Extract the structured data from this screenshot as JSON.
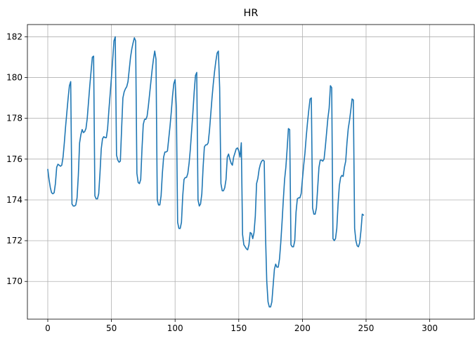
{
  "chart_data": {
    "type": "line",
    "title": "HR",
    "xlabel": "",
    "ylabel": "",
    "xlim": [
      -16,
      335
    ],
    "ylim": [
      168.15,
      182.6
    ],
    "xticks": [
      0,
      50,
      100,
      150,
      200,
      250,
      300
    ],
    "yticks": [
      170,
      172,
      174,
      176,
      178,
      180,
      182
    ],
    "grid": true,
    "series": [
      {
        "color": "#1f77b4",
        "points": [
          [
            0,
            175.5
          ],
          [
            1,
            175.0
          ],
          [
            2,
            174.6
          ],
          [
            3,
            174.35
          ],
          [
            4,
            174.3
          ],
          [
            5,
            174.35
          ],
          [
            6,
            174.8
          ],
          [
            7,
            175.6
          ],
          [
            8,
            175.75
          ],
          [
            9,
            175.7
          ],
          [
            10,
            175.65
          ],
          [
            11,
            175.7
          ],
          [
            12,
            176.1
          ],
          [
            13,
            176.8
          ],
          [
            14,
            177.6
          ],
          [
            15,
            178.3
          ],
          [
            16,
            179.0
          ],
          [
            17,
            179.6
          ],
          [
            18,
            179.8
          ],
          [
            19,
            173.8
          ],
          [
            20,
            173.7
          ],
          [
            21,
            173.7
          ],
          [
            22,
            173.75
          ],
          [
            23,
            174.1
          ],
          [
            24,
            175.2
          ],
          [
            25,
            176.8
          ],
          [
            26,
            177.2
          ],
          [
            27,
            177.45
          ],
          [
            28,
            177.3
          ],
          [
            29,
            177.35
          ],
          [
            30,
            177.5
          ],
          [
            31,
            178.0
          ],
          [
            32,
            178.8
          ],
          [
            33,
            179.6
          ],
          [
            34,
            180.3
          ],
          [
            35,
            181.0
          ],
          [
            36,
            181.05
          ],
          [
            37,
            174.2
          ],
          [
            38,
            174.05
          ],
          [
            39,
            174.05
          ],
          [
            40,
            174.3
          ],
          [
            41,
            175.3
          ],
          [
            42,
            176.5
          ],
          [
            43,
            177.0
          ],
          [
            44,
            177.1
          ],
          [
            45,
            177.05
          ],
          [
            46,
            177.05
          ],
          [
            47,
            177.5
          ],
          [
            48,
            178.4
          ],
          [
            49,
            179.2
          ],
          [
            50,
            180.0
          ],
          [
            51,
            180.9
          ],
          [
            52,
            181.8
          ],
          [
            53,
            182.0
          ],
          [
            54,
            176.2
          ],
          [
            55,
            175.95
          ],
          [
            56,
            175.85
          ],
          [
            57,
            175.9
          ],
          [
            58,
            177.5
          ],
          [
            59,
            179.0
          ],
          [
            60,
            179.3
          ],
          [
            61,
            179.45
          ],
          [
            62,
            179.55
          ],
          [
            63,
            179.8
          ],
          [
            64,
            180.4
          ],
          [
            65,
            181.0
          ],
          [
            66,
            181.4
          ],
          [
            67,
            181.7
          ],
          [
            68,
            181.95
          ],
          [
            69,
            181.8
          ],
          [
            70,
            175.3
          ],
          [
            71,
            174.85
          ],
          [
            72,
            174.8
          ],
          [
            73,
            175.0
          ],
          [
            74,
            176.5
          ],
          [
            75,
            177.7
          ],
          [
            76,
            177.95
          ],
          [
            77,
            177.95
          ],
          [
            78,
            178.1
          ],
          [
            79,
            178.6
          ],
          [
            80,
            179.2
          ],
          [
            81,
            179.8
          ],
          [
            82,
            180.4
          ],
          [
            83,
            180.9
          ],
          [
            84,
            181.3
          ],
          [
            85,
            180.9
          ],
          [
            86,
            174.0
          ],
          [
            87,
            173.75
          ],
          [
            88,
            173.75
          ],
          [
            89,
            174.2
          ],
          [
            90,
            175.3
          ],
          [
            91,
            176.1
          ],
          [
            92,
            176.35
          ],
          [
            93,
            176.35
          ],
          [
            94,
            176.4
          ],
          [
            95,
            177.0
          ],
          [
            96,
            177.6
          ],
          [
            97,
            178.3
          ],
          [
            98,
            179.1
          ],
          [
            99,
            179.7
          ],
          [
            100,
            179.9
          ],
          [
            101,
            178.5
          ],
          [
            102,
            172.9
          ],
          [
            103,
            172.6
          ],
          [
            104,
            172.6
          ],
          [
            105,
            172.9
          ],
          [
            106,
            174.2
          ],
          [
            107,
            175.0
          ],
          [
            108,
            175.1
          ],
          [
            109,
            175.1
          ],
          [
            110,
            175.3
          ],
          [
            111,
            175.8
          ],
          [
            112,
            176.5
          ],
          [
            113,
            177.4
          ],
          [
            114,
            178.3
          ],
          [
            115,
            179.3
          ],
          [
            116,
            180.1
          ],
          [
            117,
            180.25
          ],
          [
            118,
            174.0
          ],
          [
            119,
            173.7
          ],
          [
            120,
            173.8
          ],
          [
            121,
            174.3
          ],
          [
            122,
            175.6
          ],
          [
            123,
            176.6
          ],
          [
            124,
            176.7
          ],
          [
            125,
            176.7
          ],
          [
            126,
            176.8
          ],
          [
            127,
            177.4
          ],
          [
            128,
            178.2
          ],
          [
            129,
            179.0
          ],
          [
            130,
            179.7
          ],
          [
            131,
            180.3
          ],
          [
            132,
            180.8
          ],
          [
            133,
            181.2
          ],
          [
            134,
            181.3
          ],
          [
            135,
            179.5
          ],
          [
            136,
            174.8
          ],
          [
            137,
            174.45
          ],
          [
            138,
            174.45
          ],
          [
            139,
            174.6
          ],
          [
            140,
            175.0
          ],
          [
            141,
            176.1
          ],
          [
            142,
            176.25
          ],
          [
            143,
            176.0
          ],
          [
            144,
            175.8
          ],
          [
            145,
            175.7
          ],
          [
            146,
            176.1
          ],
          [
            147,
            176.3
          ],
          [
            148,
            176.5
          ],
          [
            149,
            176.55
          ],
          [
            150,
            176.4
          ],
          [
            151,
            176.1
          ],
          [
            152,
            176.8
          ],
          [
            153,
            172.3
          ],
          [
            154,
            171.8
          ],
          [
            155,
            171.7
          ],
          [
            156,
            171.6
          ],
          [
            157,
            171.55
          ],
          [
            158,
            171.8
          ],
          [
            159,
            172.4
          ],
          [
            160,
            172.35
          ],
          [
            161,
            172.1
          ],
          [
            162,
            172.4
          ],
          [
            163,
            173.2
          ],
          [
            164,
            174.8
          ],
          [
            165,
            175.05
          ],
          [
            166,
            175.5
          ],
          [
            167,
            175.75
          ],
          [
            168,
            175.9
          ],
          [
            169,
            175.95
          ],
          [
            170,
            175.9
          ],
          [
            171,
            172.3
          ],
          [
            172,
            170.0
          ],
          [
            173,
            169.0
          ],
          [
            174,
            168.75
          ],
          [
            175,
            168.75
          ],
          [
            176,
            169.0
          ],
          [
            177,
            169.8
          ],
          [
            178,
            170.6
          ],
          [
            179,
            170.85
          ],
          [
            180,
            170.7
          ],
          [
            181,
            170.7
          ],
          [
            182,
            171.1
          ],
          [
            183,
            171.9
          ],
          [
            184,
            172.9
          ],
          [
            185,
            174.0
          ],
          [
            186,
            175.0
          ],
          [
            187,
            175.6
          ],
          [
            188,
            176.5
          ],
          [
            189,
            177.5
          ],
          [
            190,
            177.45
          ],
          [
            191,
            171.8
          ],
          [
            192,
            171.7
          ],
          [
            193,
            171.7
          ],
          [
            194,
            172.0
          ],
          [
            195,
            173.4
          ],
          [
            196,
            174.05
          ],
          [
            197,
            174.1
          ],
          [
            198,
            174.1
          ],
          [
            199,
            174.3
          ],
          [
            200,
            175.0
          ],
          [
            201,
            175.7
          ],
          [
            202,
            176.3
          ],
          [
            203,
            177.1
          ],
          [
            204,
            177.8
          ],
          [
            205,
            178.4
          ],
          [
            206,
            178.95
          ],
          [
            207,
            179.0
          ],
          [
            208,
            173.6
          ],
          [
            209,
            173.3
          ],
          [
            210,
            173.3
          ],
          [
            211,
            173.6
          ],
          [
            212,
            174.6
          ],
          [
            213,
            175.6
          ],
          [
            214,
            175.95
          ],
          [
            215,
            175.95
          ],
          [
            216,
            175.9
          ],
          [
            217,
            176.0
          ],
          [
            218,
            176.6
          ],
          [
            219,
            177.3
          ],
          [
            220,
            178.0
          ],
          [
            221,
            178.5
          ],
          [
            222,
            179.6
          ],
          [
            223,
            179.5
          ],
          [
            224,
            172.1
          ],
          [
            225,
            172.0
          ],
          [
            226,
            172.1
          ],
          [
            227,
            172.6
          ],
          [
            228,
            173.8
          ],
          [
            229,
            174.7
          ],
          [
            230,
            175.1
          ],
          [
            231,
            175.2
          ],
          [
            232,
            175.15
          ],
          [
            233,
            175.6
          ],
          [
            234,
            175.9
          ],
          [
            235,
            176.8
          ],
          [
            236,
            177.5
          ],
          [
            237,
            177.9
          ],
          [
            238,
            178.4
          ],
          [
            239,
            178.95
          ],
          [
            240,
            178.9
          ],
          [
            241,
            172.6
          ],
          [
            242,
            172.0
          ],
          [
            243,
            171.75
          ],
          [
            244,
            171.7
          ],
          [
            245,
            171.9
          ],
          [
            246,
            172.5
          ],
          [
            247,
            173.3
          ],
          [
            248,
            173.25
          ]
        ]
      }
    ]
  }
}
